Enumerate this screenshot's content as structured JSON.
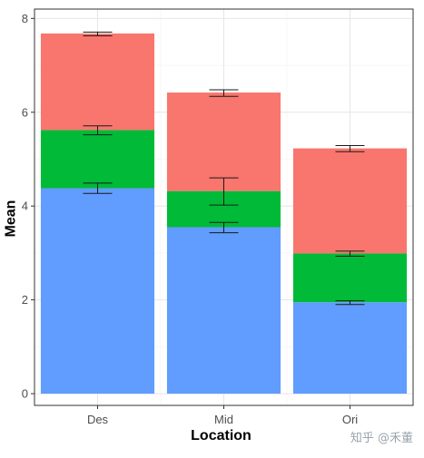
{
  "chart_data": {
    "type": "bar",
    "stacked": true,
    "categories": [
      "Des",
      "Mid",
      "Ori"
    ],
    "series": [
      {
        "values": [
          4.38,
          3.55,
          1.95
        ],
        "color": "#619CFF",
        "error_low": [
          4.27,
          3.43,
          1.9
        ],
        "error_high": [
          4.49,
          3.65,
          1.98
        ]
      },
      {
        "values": [
          1.24,
          0.77,
          1.04
        ],
        "color": "#00BA38",
        "error_low": [
          5.52,
          4.02,
          2.93
        ],
        "error_high": [
          5.71,
          4.6,
          3.04
        ]
      },
      {
        "values": [
          2.06,
          2.1,
          2.24
        ],
        "color": "#F8766D",
        "error_low": [
          7.63,
          6.34,
          5.16
        ],
        "error_high": [
          7.71,
          6.48,
          5.29
        ]
      }
    ],
    "xlabel": "Location",
    "ylabel": "Mean",
    "ylim": [
      -0.25,
      8.2
    ],
    "yticks": [
      0,
      2,
      4,
      6,
      8
    ],
    "grid": true,
    "legend": "none"
  },
  "watermark": "知乎 @禾董"
}
